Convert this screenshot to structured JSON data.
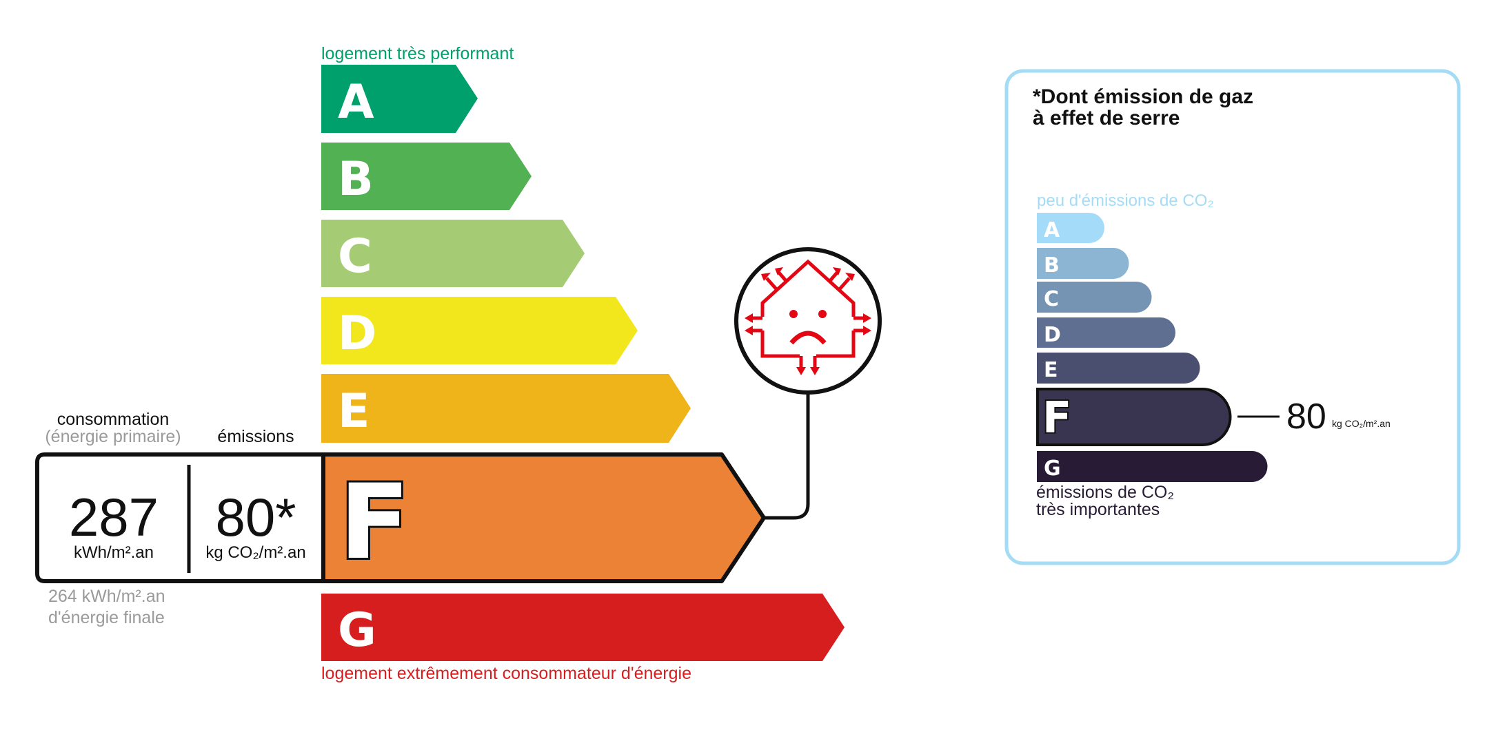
{
  "dpe": {
    "top_label": "logement très performant",
    "bottom_label": "logement extrêmement consommateur d'énergie",
    "classes": [
      {
        "letter": "A",
        "color": "#00a06c"
      },
      {
        "letter": "B",
        "color": "#52b153"
      },
      {
        "letter": "C",
        "color": "#a5cc74"
      },
      {
        "letter": "D",
        "color": "#f2e61d"
      },
      {
        "letter": "E",
        "color": "#efb41a"
      },
      {
        "letter": "F",
        "color": "#eb8235"
      },
      {
        "letter": "G",
        "color": "#d71e1f"
      }
    ],
    "current_class": "F",
    "consumption_label": "consommation",
    "consumption_sub": "(énergie primaire)",
    "emissions_label": "émissions",
    "consumption_value": "287",
    "consumption_unit": "kWh/m².an",
    "emissions_value": "80*",
    "emissions_unit": "kg CO₂/m².an",
    "final_energy_value": "264 kWh/m².an",
    "final_energy_label": "d'énergie finale",
    "icon": "leaky-house-sad-icon",
    "icon_color": "#e30613"
  },
  "ges": {
    "title_line1": "*Dont émission de gaz",
    "title_line2": "à effet de serre",
    "top_label": "peu d'émissions de CO₂",
    "bottom_label_line1": "émissions de CO₂",
    "bottom_label_line2": "très importantes",
    "classes": [
      {
        "letter": "A",
        "color": "#a4dbf8"
      },
      {
        "letter": "B",
        "color": "#8cb4d3"
      },
      {
        "letter": "C",
        "color": "#7593b3"
      },
      {
        "letter": "D",
        "color": "#5f6f91"
      },
      {
        "letter": "E",
        "color": "#4b4f6f"
      },
      {
        "letter": "F",
        "color": "#393551"
      },
      {
        "letter": "G",
        "color": "#281b35"
      }
    ],
    "current_class": "F",
    "value": "80",
    "unit": "kg CO₂/m².an",
    "border_color": "#a4dbf5"
  }
}
